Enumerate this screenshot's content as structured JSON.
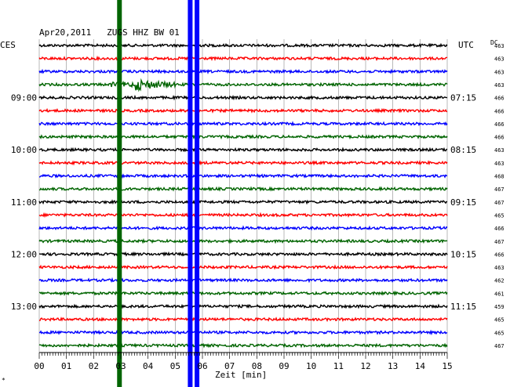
{
  "header": {
    "title": "Apr20,2011   ZUGS HHZ BW 01",
    "left_zone": "CES",
    "right_zone": "UTC",
    "dc_label": "DC",
    "xlabel": "Zeit [min]",
    "corner_mark": "*"
  },
  "chart_data": {
    "type": "line",
    "title": "Apr20,2011   ZUGS HHZ BW 01",
    "xlabel": "Zeit [min]",
    "xlim": [
      0,
      15
    ],
    "x_ticks": [
      "00",
      "01",
      "02",
      "03",
      "04",
      "05",
      "06",
      "07",
      "08",
      "09",
      "10",
      "11",
      "12",
      "13",
      "14",
      "15"
    ],
    "trace_colors": [
      "#000000",
      "#ff0000",
      "#0000ff",
      "#006400"
    ],
    "time_labels_left": [
      {
        "trace": 4,
        "label": "09:00"
      },
      {
        "trace": 8,
        "label": "10:00"
      },
      {
        "trace": 12,
        "label": "11:00"
      },
      {
        "trace": 16,
        "label": "12:00"
      },
      {
        "trace": 20,
        "label": "13:00"
      }
    ],
    "time_labels_right": [
      {
        "trace": 4,
        "label": "07:15"
      },
      {
        "trace": 8,
        "label": "08:15"
      },
      {
        "trace": 12,
        "label": "09:15"
      },
      {
        "trace": 16,
        "label": "10:15"
      },
      {
        "trace": 20,
        "label": "11:15"
      }
    ],
    "dc_offsets": [
      "463",
      "463",
      "463",
      "463",
      "466",
      "466",
      "466",
      "466",
      "463",
      "463",
      "468",
      "467",
      "467",
      "465",
      "466",
      "467",
      "466",
      "463",
      "462",
      "461",
      "459",
      "465",
      "465",
      "467"
    ],
    "events": [
      {
        "trace": 3,
        "start_min": 3.5,
        "end_min": 5.0,
        "description": "earthquake signal"
      }
    ],
    "vertical_markers": [
      {
        "minute": 2.95,
        "color": "#006400"
      },
      {
        "minute": 5.55,
        "color": "#0000ff"
      },
      {
        "minute": 5.8,
        "color": "#0000ff"
      }
    ],
    "grid": true
  }
}
